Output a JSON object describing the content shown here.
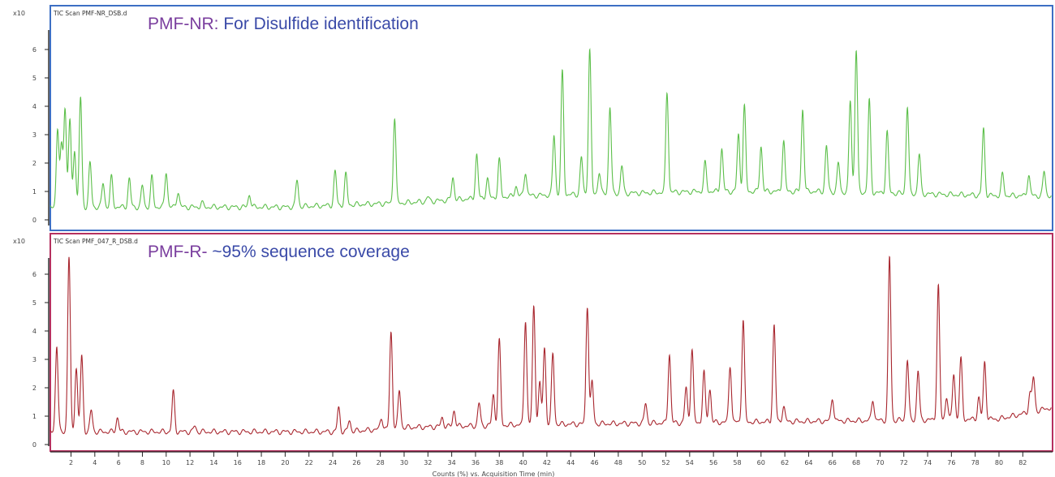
{
  "chart_data": [
    {
      "type": "line",
      "title": "PMF-NR: For Disulfide identification",
      "title_prefix": "PMF-NR:",
      "title_rest": " For Disulfide identification",
      "legend": "TIC Scan PMF-NR_DSB.d",
      "ylabel": "x10",
      "yticks": [
        0,
        1,
        2,
        3,
        4,
        5,
        6
      ],
      "ylim": [
        -0.1,
        7.2
      ],
      "xlim": [
        0.25,
        84.4
      ],
      "color": "#5cbf4a",
      "border_color": "#3d6fc4",
      "baseline": [
        [
          0.25,
          0.45
        ],
        [
          20,
          0.45
        ],
        [
          30,
          0.6
        ],
        [
          40,
          0.85
        ],
        [
          55,
          1.0
        ],
        [
          65,
          1.0
        ],
        [
          80,
          0.85
        ],
        [
          84.4,
          0.85
        ]
      ],
      "peaks": [
        [
          0.87,
          3.2
        ],
        [
          1.2,
          2.6
        ],
        [
          1.5,
          3.9
        ],
        [
          1.9,
          3.5
        ],
        [
          2.3,
          2.5
        ],
        [
          2.8,
          4.3
        ],
        [
          3.6,
          2.0
        ],
        [
          4.7,
          1.3
        ],
        [
          5.4,
          1.5
        ],
        [
          6.9,
          1.45
        ],
        [
          8.0,
          1.2
        ],
        [
          8.8,
          1.5
        ],
        [
          10.0,
          1.7
        ],
        [
          11.0,
          1.0
        ],
        [
          13.0,
          0.6
        ],
        [
          17.0,
          0.9
        ],
        [
          21.0,
          1.4
        ],
        [
          24.2,
          1.7
        ],
        [
          25.1,
          1.6
        ],
        [
          29.2,
          3.6
        ],
        [
          32.0,
          0.8
        ],
        [
          34.1,
          1.5
        ],
        [
          36.1,
          2.3
        ],
        [
          37.0,
          1.45
        ],
        [
          38.0,
          2.1
        ],
        [
          39.4,
          1.2
        ],
        [
          40.2,
          1.7
        ],
        [
          42.6,
          3.0
        ],
        [
          43.3,
          5.2
        ],
        [
          44.9,
          2.2
        ],
        [
          45.6,
          6.0
        ],
        [
          46.4,
          1.7
        ],
        [
          47.3,
          4.0
        ],
        [
          48.3,
          1.9
        ],
        [
          52.1,
          4.5
        ],
        [
          55.3,
          2.0
        ],
        [
          56.7,
          2.5
        ],
        [
          58.1,
          3.0
        ],
        [
          58.6,
          4.0
        ],
        [
          60.0,
          2.6
        ],
        [
          61.9,
          2.8
        ],
        [
          63.5,
          3.9
        ],
        [
          65.5,
          2.6
        ],
        [
          66.5,
          2.0
        ],
        [
          67.5,
          4.2
        ],
        [
          68.0,
          6.0
        ],
        [
          69.1,
          4.2
        ],
        [
          70.6,
          3.1
        ],
        [
          72.3,
          4.0
        ],
        [
          73.3,
          2.3
        ],
        [
          78.7,
          3.2
        ],
        [
          80.3,
          1.6
        ],
        [
          82.5,
          1.6
        ],
        [
          83.8,
          1.7
        ]
      ]
    },
    {
      "type": "line",
      "title": "PMF-R- ~95% sequence coverage",
      "title_prefix": "PMF-R-",
      "title_rest": " ~95% sequence coverage",
      "legend": "TIC Scan PMF_047_R_DSB.d",
      "ylabel": "x10",
      "yticks": [
        0,
        1,
        2,
        3,
        4,
        5,
        6
      ],
      "ylim": [
        -0.1,
        7.0
      ],
      "xlim": [
        0.25,
        84.4
      ],
      "color": "#a8262e",
      "border_color": "#b5305f",
      "baseline": [
        [
          0.25,
          0.45
        ],
        [
          25,
          0.45
        ],
        [
          30,
          0.6
        ],
        [
          40,
          0.7
        ],
        [
          60,
          0.8
        ],
        [
          80,
          0.9
        ],
        [
          84.4,
          1.3
        ]
      ],
      "peaks": [
        [
          0.8,
          3.5
        ],
        [
          1.83,
          6.6
        ],
        [
          2.44,
          2.7
        ],
        [
          2.9,
          3.1
        ],
        [
          3.7,
          1.2
        ],
        [
          5.9,
          0.95
        ],
        [
          10.6,
          1.85
        ],
        [
          12.4,
          0.65
        ],
        [
          24.5,
          1.3
        ],
        [
          25.4,
          0.85
        ],
        [
          28.1,
          0.95
        ],
        [
          28.9,
          3.95
        ],
        [
          29.6,
          1.9
        ],
        [
          33.2,
          0.95
        ],
        [
          34.2,
          1.2
        ],
        [
          36.3,
          1.45
        ],
        [
          37.5,
          1.75
        ],
        [
          38.0,
          3.65
        ],
        [
          40.2,
          4.4
        ],
        [
          40.9,
          4.85
        ],
        [
          41.4,
          2.15
        ],
        [
          41.8,
          3.4
        ],
        [
          42.5,
          3.2
        ],
        [
          45.4,
          4.9
        ],
        [
          45.8,
          2.2
        ],
        [
          50.3,
          1.45
        ],
        [
          52.3,
          3.2
        ],
        [
          53.7,
          2.0
        ],
        [
          54.2,
          3.35
        ],
        [
          55.2,
          2.55
        ],
        [
          55.7,
          1.95
        ],
        [
          57.4,
          2.8
        ],
        [
          58.5,
          4.4
        ],
        [
          61.1,
          4.2
        ],
        [
          61.9,
          1.35
        ],
        [
          66.0,
          1.65
        ],
        [
          69.4,
          1.6
        ],
        [
          70.8,
          6.6
        ],
        [
          72.3,
          3.0
        ],
        [
          73.2,
          2.6
        ],
        [
          74.9,
          5.6
        ],
        [
          75.6,
          1.7
        ],
        [
          76.2,
          2.5
        ],
        [
          76.8,
          3.0
        ],
        [
          78.3,
          1.65
        ],
        [
          78.8,
          2.9
        ],
        [
          82.6,
          1.8
        ],
        [
          82.9,
          2.35
        ]
      ]
    }
  ],
  "xaxis": {
    "label": "Counts (%) vs. Acquisition Time (min)",
    "ticks": [
      2,
      4,
      6,
      8,
      10,
      12,
      14,
      16,
      18,
      20,
      22,
      24,
      26,
      28,
      30,
      32,
      34,
      36,
      38,
      40,
      42,
      44,
      46,
      48,
      50,
      52,
      54,
      56,
      58,
      60,
      62,
      64,
      66,
      68,
      70,
      72,
      74,
      76,
      78,
      80,
      82
    ]
  },
  "colors": {
    "title_purple": "#7a3e9e",
    "title_blue": "#3a4aa8"
  }
}
